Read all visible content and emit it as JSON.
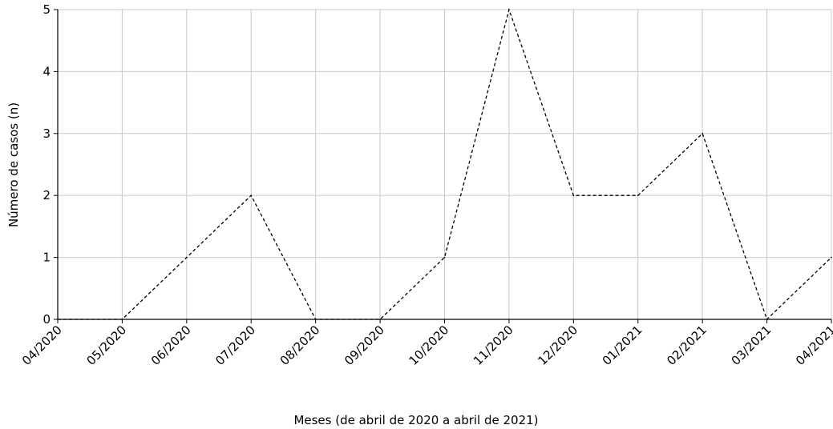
{
  "chart_data": {
    "type": "line",
    "title": "",
    "xlabel": "Meses (de abril de 2020 a abril de 2021)",
    "ylabel": "Número de casos (n)",
    "categories": [
      "04/2020",
      "05/2020",
      "06/2020",
      "07/2020",
      "08/2020",
      "09/2020",
      "10/2020",
      "11/2020",
      "12/2020",
      "01/2021",
      "02/2021",
      "03/2021",
      "04/2021"
    ],
    "series": [
      {
        "values": [
          0,
          0,
          1,
          2,
          0,
          0,
          1,
          5,
          2,
          2,
          3,
          0,
          1
        ]
      }
    ],
    "ylim": [
      0,
      5
    ],
    "yticks": [
      "0",
      "1",
      "2",
      "3",
      "4",
      "5"
    ],
    "grid": true,
    "line_style": "dashed",
    "colors": {
      "line": "#000000",
      "grid": "#c8c8c8",
      "axis": "#000000"
    }
  }
}
